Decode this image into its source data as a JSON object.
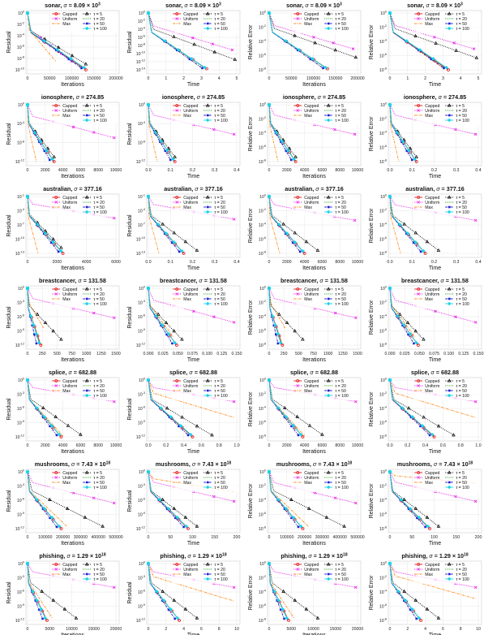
{
  "legend": {
    "entries": [
      {
        "label": "Capped",
        "color": "#e41a1c",
        "marker": "o",
        "dash": "solid"
      },
      {
        "label": "Uniform",
        "color": "#e815e8",
        "marker": "x",
        "dash": "dotted"
      },
      {
        "label": "Max",
        "color": "#ff8c1a",
        "marker": "none",
        "dash": "dashdot"
      },
      {
        "label": "τ = 5",
        "color": "#111111",
        "marker": "^",
        "dash": "dotted"
      },
      {
        "label": "τ = 20",
        "color": "#1a9e1a",
        "marker": "none",
        "dash": "dotted"
      },
      {
        "label": "τ = 50",
        "color": "#1f1fd6",
        "marker": "s",
        "dash": "dashdot"
      },
      {
        "label": "τ = 100",
        "color": "#17d4e6",
        "marker": "D",
        "dash": "solid"
      }
    ]
  },
  "ylabels": [
    "Residual",
    "Residual",
    "Relative Error",
    "Relative Error"
  ],
  "xlabels": [
    "Iterations",
    "Time",
    "Iterations",
    "Time"
  ],
  "rows": [
    {
      "dataset": "sonar",
      "sigma_base": "8.09",
      "sigma_exp": "3",
      "panels": [
        {
          "xmax": 200000,
          "xticks": [
            "0",
            "50000",
            "100000",
            "150000",
            "200000"
          ],
          "yticks": [
            "10^0",
            "10^-2",
            "10^-4",
            "10^-6",
            "10^-8",
            "10^-10"
          ]
        },
        {
          "xmax": 5,
          "xticks": [
            "0",
            "1",
            "2",
            "3",
            "4",
            "5"
          ],
          "yticks": [
            "10^0",
            "10^-2",
            "10^-4",
            "10^-6",
            "10^-8",
            "10^-10",
            "10^-12",
            "10^-14"
          ]
        },
        {
          "xmax": 200000,
          "xticks": [
            "0",
            "50000",
            "100000",
            "150000",
            "200000"
          ],
          "yticks": [
            "10^0",
            "10^-2",
            "10^-4",
            "10^-6",
            "10^-8"
          ]
        },
        {
          "xmax": 5,
          "xticks": [
            "0",
            "1",
            "2",
            "3",
            "4",
            "5"
          ],
          "yticks": [
            "10^0",
            "10^-2",
            "10^-4",
            "10^-6",
            "10^-8"
          ]
        }
      ],
      "ends": [
        [
          [
            0.66,
            1.0
          ],
          [
            0.5,
            0.85
          ],
          [
            0.32,
            0.85
          ],
          [
            0.66,
            0.9
          ]
        ],
        [
          [
            0.66,
            0.98
          ],
          [
            0.95,
            0.65
          ],
          [
            0.6,
            0.96
          ],
          [
            0.98,
            0.82
          ]
        ],
        [
          [
            0.66,
            0.98
          ],
          [
            0.95,
            0.63
          ],
          [
            0.6,
            0.96
          ],
          [
            0.98,
            0.78
          ]
        ],
        [
          [
            0.66,
            1.0
          ],
          [
            0.95,
            0.63
          ],
          [
            0.6,
            0.97
          ],
          [
            0.98,
            0.79
          ]
        ]
      ]
    },
    {
      "dataset": "ionosphere",
      "sigma_base": "274.85",
      "sigma_exp": "",
      "panels": [
        {
          "xmax": 10000,
          "xticks": [
            "0",
            "2000",
            "4000",
            "6000",
            "8000",
            "10000"
          ],
          "yticks": [
            "10^0",
            "10^-4",
            "10^-8",
            "10^-12"
          ]
        },
        {
          "xmax": 0.4,
          "xticks": [
            "0.0",
            "0.1",
            "0.2",
            "0.3",
            "0.4"
          ],
          "yticks": [
            "10^0",
            "10^-4",
            "10^-8",
            "10^-12"
          ]
        },
        {
          "xmax": 10000,
          "xticks": [
            "0",
            "2000",
            "4000",
            "6000",
            "8000",
            "10000"
          ],
          "yticks": [
            "10^0",
            "10^-2",
            "10^-4",
            "10^-6",
            "10^-8"
          ]
        },
        {
          "xmax": 0.4,
          "xticks": [
            "0.0",
            "0.1",
            "0.2",
            "0.3",
            "0.4"
          ],
          "yticks": [
            "10^0",
            "10^-2",
            "10^-4",
            "10^-6",
            "10^-8"
          ]
        }
      ],
      "ends": [
        [
          [
            0.3,
            1.0
          ],
          [
            0.98,
            0.58
          ],
          [
            0.1,
            1.0
          ],
          [
            0.3,
            0.92
          ]
        ],
        [
          [
            0.3,
            1.0
          ],
          [
            0.97,
            0.52
          ],
          [
            0.1,
            1.0
          ],
          [
            0.3,
            0.92
          ]
        ],
        [
          [
            0.3,
            1.0
          ],
          [
            0.97,
            0.52
          ],
          [
            0.1,
            1.0
          ],
          [
            0.3,
            0.92
          ]
        ],
        [
          [
            0.3,
            1.0
          ],
          [
            0.97,
            0.52
          ],
          [
            0.1,
            1.0
          ],
          [
            0.3,
            0.92
          ]
        ]
      ]
    },
    {
      "dataset": "australian",
      "sigma_base": "377.16",
      "sigma_exp": "",
      "panels": [
        {
          "xmax": 6000,
          "xticks": [
            "0",
            "2000",
            "4000",
            "6000"
          ],
          "yticks": [
            "10^-1",
            "10^-4",
            "10^-7",
            "10^-10",
            "10^-13"
          ]
        },
        {
          "xmax": 0.4,
          "xticks": [
            "0.0",
            "0.1",
            "0.2",
            "0.3",
            "0.4"
          ],
          "yticks": [
            "10^-1",
            "10^-4",
            "10^-7",
            "10^-10",
            "10^-13"
          ]
        },
        {
          "xmax": 10000,
          "xticks": [
            "0",
            "2000",
            "4000",
            "6000",
            "8000",
            "10000"
          ],
          "yticks": [
            "10^0",
            "10^-2",
            "10^-4",
            "10^-6",
            "10^-8"
          ]
        },
        {
          "xmax": 0.4,
          "xticks": [
            "0.0",
            "0.1",
            "0.2",
            "0.3",
            "0.4"
          ],
          "yticks": [
            "10^0",
            "10^-2",
            "10^-4",
            "10^-6",
            "10^-8"
          ]
        }
      ],
      "ends": [
        [
          [
            0.4,
            1.0
          ],
          [
            0.98,
            0.38
          ],
          [
            0.12,
            1.0
          ],
          [
            0.38,
            0.9
          ]
        ],
        [
          [
            0.4,
            1.0
          ],
          [
            0.97,
            0.4
          ],
          [
            0.12,
            1.0
          ],
          [
            0.55,
            0.95
          ]
        ],
        [
          [
            0.4,
            1.0
          ],
          [
            0.97,
            0.42
          ],
          [
            0.12,
            1.0
          ],
          [
            0.55,
            0.95
          ]
        ],
        [
          [
            0.4,
            1.0
          ],
          [
            0.97,
            0.42
          ],
          [
            0.12,
            1.0
          ],
          [
            0.55,
            0.95
          ]
        ]
      ]
    },
    {
      "dataset": "breastcancer",
      "sigma_base": "131.58",
      "sigma_exp": "",
      "panels": [
        {
          "xmax": 1500,
          "xticks": [
            "0",
            "250",
            "500",
            "750",
            "1000",
            "1250",
            "1500"
          ],
          "yticks": [
            "10^0",
            "10^-3",
            "10^-6",
            "10^-9",
            "10^-12"
          ]
        },
        {
          "xmax": 0.15,
          "xticks": [
            "0.000",
            "0.025",
            "0.050",
            "0.075",
            "0.100",
            "0.125",
            "0.150"
          ],
          "yticks": [
            "10^0",
            "10^-3",
            "10^-6",
            "10^-9",
            "10^-12"
          ]
        },
        {
          "xmax": 1500,
          "xticks": [
            "0",
            "250",
            "500",
            "750",
            "1000",
            "1250",
            "1500"
          ],
          "yticks": [
            "10^0",
            "10^-2",
            "10^-4",
            "10^-6",
            "10^-8"
          ]
        },
        {
          "xmax": 0.15,
          "xticks": [
            "0.000",
            "0.025",
            "0.050",
            "0.075",
            "0.100",
            "0.125",
            "0.150"
          ],
          "yticks": [
            "10^0",
            "10^-2",
            "10^-4",
            "10^-6",
            "10^-8"
          ]
        }
      ],
      "ends": [
        [
          [
            0.15,
            1.0
          ],
          [
            0.98,
            0.52
          ],
          [
            0.18,
            0.7
          ],
          [
            0.38,
            0.9
          ]
        ],
        [
          [
            0.32,
            1.0
          ],
          [
            0.97,
            0.6
          ],
          [
            0.28,
            0.85
          ],
          [
            0.38,
            0.9
          ]
        ],
        [
          [
            0.15,
            1.0
          ],
          [
            0.98,
            0.52
          ],
          [
            0.18,
            0.7
          ],
          [
            0.38,
            0.9
          ]
        ],
        [
          [
            0.32,
            1.0
          ],
          [
            0.97,
            0.6
          ],
          [
            0.28,
            0.85
          ],
          [
            0.38,
            0.9
          ]
        ]
      ]
    },
    {
      "dataset": "splice",
      "sigma_base": "682.88",
      "sigma_exp": "",
      "panels": [
        {
          "xmax": 10000,
          "xticks": [
            "0",
            "2000",
            "4000",
            "6000",
            "8000",
            "10000"
          ],
          "yticks": [
            "10^0",
            "10^-3",
            "10^-6",
            "10^-9",
            "10^-12"
          ]
        },
        {
          "xmax": 1.0,
          "xticks": [
            "0.0",
            "0.2",
            "0.4",
            "0.6",
            "0.8",
            "1.0"
          ],
          "yticks": [
            "10^0",
            "10^-3",
            "10^-6",
            "10^-9",
            "10^-12"
          ]
        },
        {
          "xmax": 10000,
          "xticks": [
            "0",
            "2000",
            "4000",
            "6000",
            "8000",
            "10000"
          ],
          "yticks": [
            "10^0",
            "10^-2",
            "10^-4",
            "10^-6",
            "10^-8"
          ]
        },
        {
          "xmax": 1.0,
          "xticks": [
            "0.0",
            "0.2",
            "0.4",
            "0.6",
            "0.8",
            "1.0"
          ],
          "yticks": [
            "10^0",
            "10^-2",
            "10^-4",
            "10^-6",
            "10^-8"
          ]
        }
      ],
      "ends": [
        [
          [
            0.38,
            1.0
          ],
          [
            0.98,
            0.38
          ],
          [
            0.4,
            0.98
          ],
          [
            0.6,
            0.96
          ]
        ],
        [
          [
            0.5,
            1.0
          ],
          [
            0.97,
            0.38
          ],
          [
            0.97,
            0.66
          ],
          [
            0.72,
            0.97
          ]
        ],
        [
          [
            0.38,
            1.0
          ],
          [
            0.98,
            0.38
          ],
          [
            0.4,
            0.98
          ],
          [
            0.6,
            0.96
          ]
        ],
        [
          [
            0.5,
            1.0
          ],
          [
            0.97,
            0.38
          ],
          [
            0.97,
            0.66
          ],
          [
            0.72,
            0.97
          ]
        ]
      ]
    },
    {
      "dataset": "mushrooms",
      "sigma_base": "7.43",
      "sigma_exp": "18",
      "panels": [
        {
          "xmax": 500000,
          "xticks": [
            "0",
            "100000",
            "200000",
            "300000",
            "400000",
            "500000"
          ],
          "yticks": [
            "10^0",
            "10^-3",
            "10^-6",
            "10^-9",
            "10^-12"
          ]
        },
        {
          "xmax": 200,
          "xticks": [
            "0",
            "50",
            "100",
            "150",
            "200"
          ],
          "yticks": [
            "10^0",
            "10^-3",
            "10^-6",
            "10^-9",
            "10^-12"
          ]
        },
        {
          "xmax": 500000,
          "xticks": [
            "0",
            "100000",
            "200000",
            "300000",
            "400000",
            "500000"
          ],
          "yticks": [
            "10^0",
            "10^-2",
            "10^-4",
            "10^-6",
            "10^-8"
          ]
        },
        {
          "xmax": 200,
          "xticks": [
            "0",
            "50",
            "100",
            "150",
            "200"
          ],
          "yticks": [
            "10^0",
            "10^-2",
            "10^-4",
            "10^-6",
            "10^-8"
          ]
        }
      ],
      "ends": [
        [
          [
            0.38,
            1.0
          ],
          [
            0.98,
            0.55
          ],
          [
            0.45,
            0.97
          ],
          [
            0.85,
            0.96
          ]
        ],
        [
          [
            0.45,
            1.0
          ],
          [
            0.97,
            0.52
          ],
          [
            0.97,
            0.35
          ],
          [
            0.55,
            0.96
          ]
        ],
        [
          [
            0.38,
            1.0
          ],
          [
            0.98,
            0.55
          ],
          [
            0.45,
            0.97
          ],
          [
            0.85,
            0.96
          ]
        ],
        [
          [
            0.45,
            1.0
          ],
          [
            0.97,
            0.52
          ],
          [
            0.97,
            0.2
          ],
          [
            0.55,
            0.96
          ]
        ]
      ]
    },
    {
      "dataset": "phishing",
      "sigma_base": "1.29",
      "sigma_exp": "18",
      "panels": [
        {
          "xmax": 20000,
          "xticks": [
            "0",
            "5000",
            "10000",
            "15000",
            "20000"
          ],
          "yticks": [
            "10^0",
            "10^-3",
            "10^-6",
            "10^-9",
            "10^-12"
          ]
        },
        {
          "xmax": 10,
          "xticks": [
            "0",
            "2",
            "4",
            "6",
            "8",
            "10"
          ],
          "yticks": [
            "10^0",
            "10^-3",
            "10^-6",
            "10^-9",
            "10^-12"
          ]
        },
        {
          "xmax": 20000,
          "xticks": [
            "0",
            "5000",
            "10000",
            "15000",
            "20000"
          ],
          "yticks": [
            "10^0",
            "10^-2",
            "10^-4",
            "10^-6",
            "10^-8"
          ]
        },
        {
          "xmax": 10,
          "xticks": [
            "0",
            "2",
            "4",
            "6",
            "8",
            "10"
          ],
          "yticks": [
            "10^0",
            "10^-2",
            "10^-4",
            "10^-6",
            "10^-8"
          ]
        }
      ],
      "ends": [
        [
          [
            0.22,
            1.0
          ],
          [
            0.98,
            0.42
          ],
          [
            0.28,
            0.96
          ],
          [
            0.55,
            0.96
          ]
        ],
        [
          [
            0.35,
            1.0
          ],
          [
            0.97,
            0.42
          ],
          [
            0.97,
            0.66
          ],
          [
            0.55,
            0.96
          ]
        ],
        [
          [
            0.22,
            1.0
          ],
          [
            0.98,
            0.42
          ],
          [
            0.28,
            0.96
          ],
          [
            0.55,
            0.96
          ]
        ],
        [
          [
            0.35,
            1.0
          ],
          [
            0.97,
            0.42
          ],
          [
            0.97,
            0.62
          ],
          [
            0.55,
            0.96
          ]
        ]
      ]
    }
  ],
  "chart_data": {
    "type": "line",
    "layout": "grid 7 rows x 4 columns",
    "yscale": "log",
    "grid": true,
    "legend_placement": "upper-right (two columns)",
    "series": [
      "Capped",
      "Uniform",
      "Max",
      "τ = 5",
      "τ = 20",
      "τ = 50",
      "τ = 100"
    ],
    "note": "Each panel shows convergence curves decaying from 10^0; 'ends' per row give approximate [x fraction of xmax, decay depth fraction] for Capped, Uniform, Max, τ = 5 in order: Residual vs Iterations, Residual vs Time, Relative Error vs Iterations, Relative Error vs Time."
  }
}
